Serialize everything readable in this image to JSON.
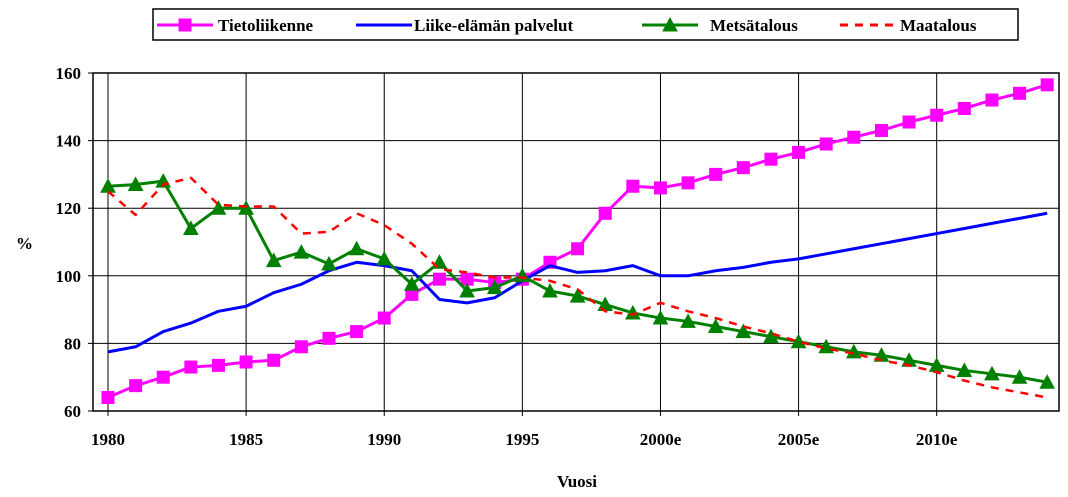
{
  "chart_data": {
    "type": "line",
    "xlabel": "Vuosi",
    "ylabel": "%",
    "ylim": [
      60,
      160
    ],
    "yticks": [
      60,
      80,
      100,
      120,
      140,
      160
    ],
    "xlim": [
      1980,
      2014.5
    ],
    "xticks": [
      {
        "value": 1980,
        "label": "1980"
      },
      {
        "value": 1985,
        "label": "1985"
      },
      {
        "value": 1990,
        "label": "1990"
      },
      {
        "value": 1995,
        "label": "1995"
      },
      {
        "value": 2000,
        "label": "2000e"
      },
      {
        "value": 2005,
        "label": "2005e"
      },
      {
        "value": 2010,
        "label": "2010e"
      }
    ],
    "grid": true,
    "legend_position": "top",
    "x": [
      1980,
      1981,
      1982,
      1983,
      1984,
      1985,
      1986,
      1987,
      1988,
      1989,
      1990,
      1991,
      1992,
      1993,
      1994,
      1995,
      1996,
      1997,
      1998,
      1999,
      2000,
      2001,
      2002,
      2003,
      2004,
      2005,
      2006,
      2007,
      2008,
      2009,
      2010,
      2011,
      2012,
      2013,
      2014
    ],
    "series": [
      {
        "name": "Tietoliikenne",
        "color": "#ff00ff",
        "marker": "square",
        "dash": false,
        "values": [
          64,
          67.5,
          70,
          73,
          73.5,
          74.5,
          75,
          79,
          81.5,
          83.5,
          87.5,
          94.5,
          99,
          99,
          98,
          99,
          104,
          108,
          118.5,
          126.5,
          126,
          127.5,
          130,
          132,
          134.5,
          136.5,
          139,
          141,
          143,
          145.5,
          147.5,
          149.5,
          152,
          154,
          156.5
        ]
      },
      {
        "name": "Liike-elämän palvelut",
        "color": "#0000ff",
        "marker": "none",
        "dash": false,
        "values": [
          77.5,
          79,
          83.5,
          86,
          89.5,
          91,
          95,
          97.5,
          101.5,
          104,
          103,
          101.5,
          93,
          92,
          93.5,
          98.5,
          103,
          101,
          101.5,
          103,
          100,
          100,
          101.5,
          102.5,
          104,
          105,
          106.5,
          108,
          109.5,
          111,
          112.5,
          114,
          115.5,
          117,
          118.5
        ]
      },
      {
        "name": "Metsätalous",
        "color": "#008000",
        "marker": "triangle",
        "dash": false,
        "values": [
          126.5,
          127,
          128,
          114,
          120,
          120,
          104.5,
          107,
          103.5,
          108,
          105,
          97.5,
          104,
          95.5,
          96.5,
          100,
          95.5,
          94,
          91.5,
          89,
          87.5,
          86.5,
          85,
          83.5,
          82,
          80.5,
          79,
          77.5,
          76.5,
          75,
          73.5,
          72,
          71,
          70,
          68.5
        ]
      },
      {
        "name": "Maatalous",
        "color": "#ff0000",
        "marker": "none",
        "dash": true,
        "values": [
          125,
          118,
          127,
          129,
          121,
          120.5,
          120.5,
          112.5,
          113,
          118.5,
          115,
          109.5,
          102,
          101,
          99.5,
          99.5,
          98.5,
          96,
          89.5,
          88.5,
          92,
          89.5,
          87.5,
          85,
          83,
          80.5,
          78.5,
          77,
          75,
          73.5,
          71.5,
          69,
          67,
          65.5,
          64
        ]
      }
    ]
  }
}
